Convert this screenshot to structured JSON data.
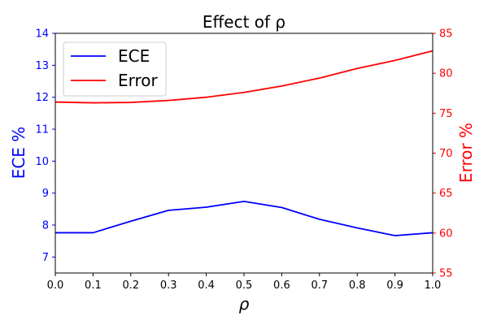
{
  "chart_data": {
    "type": "line",
    "title": "Effect of ρ",
    "xlabel": "ρ",
    "x": [
      0.0,
      0.1,
      0.2,
      0.3,
      0.4,
      0.5,
      0.6,
      0.7,
      0.8,
      0.9,
      1.0
    ],
    "xlim": [
      0.0,
      1.0
    ],
    "x_ticks": [
      "0.0",
      "0.1",
      "0.2",
      "0.3",
      "0.4",
      "0.5",
      "0.6",
      "0.7",
      "0.8",
      "0.9",
      "1.0"
    ],
    "y_left": {
      "label": "ECE %",
      "range": [
        6.5,
        14
      ],
      "ticks": [
        "7",
        "8",
        "9",
        "10",
        "11",
        "12",
        "13",
        "14"
      ],
      "color": "#0000ff"
    },
    "y_right": {
      "label": "Error %",
      "range": [
        55,
        85
      ],
      "ticks": [
        "55",
        "60",
        "65",
        "70",
        "75",
        "80",
        "85"
      ],
      "color": "#ff0000"
    },
    "series": [
      {
        "name": "ECE",
        "axis": "left",
        "color": "#0000ff",
        "values": [
          7.76,
          7.76,
          8.12,
          8.46,
          8.56,
          8.74,
          8.55,
          8.18,
          7.91,
          7.67,
          7.76
        ]
      },
      {
        "name": "Error",
        "axis": "right",
        "color": "#ff0000",
        "values": [
          76.4,
          76.3,
          76.35,
          76.6,
          77.0,
          77.6,
          78.4,
          79.4,
          80.6,
          81.6,
          82.8
        ]
      }
    ],
    "legend_position": "upper-left",
    "grid": false
  }
}
